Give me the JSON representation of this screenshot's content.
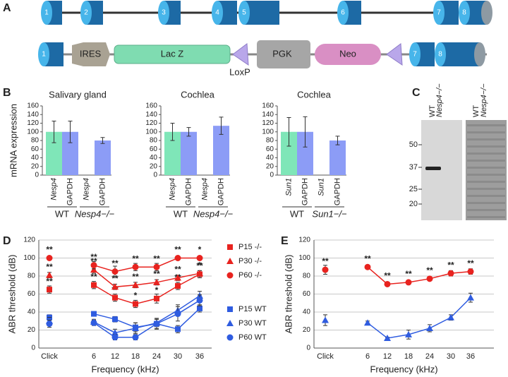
{
  "panel_labels": [
    "A",
    "B",
    "C",
    "D",
    "E"
  ],
  "gene_diagram": {
    "wild_type_exons": [
      "1",
      "2",
      "3",
      "4",
      "5",
      "6",
      "7",
      "8"
    ],
    "targeted_allele": {
      "exon_1": "1",
      "ires": "IRES",
      "lacz": "Lac Z",
      "loxp": "LoxP",
      "pgk": "PGK",
      "neo": "Neo",
      "exon_7": "7",
      "exon_8": "8"
    }
  },
  "blot": {
    "lanes": [
      "WT",
      "Nesp4−/−"
    ],
    "markers": [
      "50",
      "37",
      "25",
      "20"
    ]
  },
  "chart_data": [
    {
      "type": "bar",
      "title": "Salivary gland",
      "y_label": "mRNA expression",
      "categories": [
        "Nesp4",
        "GAPDH",
        "Nesp4",
        "GAPDH"
      ],
      "groups": [
        "WT",
        "Nesp4−/−"
      ],
      "values": [
        100,
        100,
        0,
        80
      ],
      "errors": [
        25,
        25,
        null,
        7
      ],
      "colors": [
        "#7fe6b8",
        "#8c9cf6",
        "#7fe6b8",
        "#8c9cf6"
      ],
      "ylim": [
        0,
        160
      ],
      "yticks": [
        0,
        20,
        40,
        60,
        80,
        100,
        120,
        140,
        160
      ],
      "grid": false
    },
    {
      "type": "bar",
      "title": "Cochlea",
      "categories": [
        "Nesp4",
        "GAPDH",
        "Nesp4",
        "GAPDH"
      ],
      "groups": [
        "WT",
        "Nesp4−/−"
      ],
      "values": [
        100,
        100,
        0,
        114
      ],
      "errors": [
        20,
        10,
        null,
        20
      ],
      "colors": [
        "#7fe6b8",
        "#8c9cf6",
        "#7fe6b8",
        "#8c9cf6"
      ],
      "ylim": [
        0,
        160
      ],
      "yticks": [
        0,
        20,
        40,
        60,
        80,
        100,
        120,
        140,
        160
      ],
      "grid": false
    },
    {
      "type": "bar",
      "title": "Cochlea",
      "categories": [
        "Sun1",
        "GAPDH",
        "Sun1",
        "GAPDH"
      ],
      "groups": [
        "WT",
        "Sun1−/−"
      ],
      "values": [
        100,
        100,
        0,
        80
      ],
      "errors": [
        33,
        35,
        null,
        10
      ],
      "colors": [
        "#7fe6b8",
        "#8c9cf6",
        "#7fe6b8",
        "#8c9cf6"
      ],
      "ylim": [
        0,
        160
      ],
      "yticks": [
        0,
        20,
        40,
        60,
        80,
        100,
        120,
        140,
        160
      ],
      "grid": false
    },
    {
      "type": "line",
      "x_label": "Frequency (kHz)",
      "y_label": "ABR threshold (dB)",
      "categories": [
        "Click",
        "6",
        "12",
        "18",
        "24",
        "30",
        "36"
      ],
      "ylim": [
        0,
        120
      ],
      "yticks": [
        0,
        20,
        40,
        60,
        80,
        100,
        120
      ],
      "grid": true,
      "series": [
        {
          "name": "P15 -/-",
          "color": "#e8231f",
          "marker": "square",
          "values": [
            65,
            70,
            56,
            49,
            55,
            69,
            82
          ],
          "errors": [
            4,
            4,
            4,
            4,
            5,
            4,
            4
          ],
          "significance": [
            "**",
            "**",
            "**",
            "*",
            "*",
            "**",
            "**"
          ]
        },
        {
          "name": "P30 -/-",
          "color": "#e8231f",
          "marker": "triangle",
          "values": [
            81,
            87,
            68,
            70,
            73,
            78,
            83
          ],
          "errors": [
            3,
            4,
            3,
            3,
            3,
            3,
            3
          ],
          "significance": [
            "**",
            "**",
            "**",
            "**",
            "**",
            "**",
            "*"
          ]
        },
        {
          "name": "P60 -/-",
          "color": "#e8231f",
          "marker": "circle",
          "values": [
            100,
            92,
            85,
            90,
            90,
            100,
            100
          ],
          "errors": [
            0,
            4,
            6,
            4,
            4,
            0,
            0
          ],
          "significance": [
            "**",
            "**",
            "**",
            "**",
            "**",
            "**",
            "*"
          ]
        },
        {
          "name": "P15 WT",
          "color": "#2f5ce0",
          "marker": "square",
          "values": [
            34,
            38,
            32,
            23,
            27,
            21,
            44
          ],
          "errors": [
            3,
            2,
            3,
            5,
            6,
            4,
            4
          ]
        },
        {
          "name": "P30 WT",
          "color": "#2f5ce0",
          "marker": "triangle",
          "values": [
            30,
            29,
            17,
            22,
            28,
            42,
            58
          ],
          "errors": [
            4,
            3,
            4,
            6,
            4,
            6,
            5
          ]
        },
        {
          "name": "P60 WT",
          "color": "#2f5ce0",
          "marker": "circle",
          "values": [
            27,
            28,
            12,
            12,
            27,
            38,
            53
          ],
          "errors": [
            4,
            3,
            3,
            3,
            5,
            8,
            6
          ]
        }
      ]
    },
    {
      "type": "line",
      "x_label": "Frequency (kHz)",
      "y_label": "ABR threshold (dB)",
      "categories": [
        "Click",
        "6",
        "12",
        "18",
        "24",
        "30",
        "36"
      ],
      "ylim": [
        0,
        120
      ],
      "yticks": [
        0,
        20,
        40,
        60,
        80,
        100,
        120
      ],
      "grid": true,
      "series": [
        {
          "color": "#e8231f",
          "marker": "circle",
          "values": [
            87,
            90,
            71,
            73,
            77,
            83,
            85
          ],
          "errors": [
            5,
            2,
            2,
            2,
            2,
            3,
            3
          ],
          "significance": [
            "**",
            "**",
            "**",
            "**",
            "**",
            "**",
            "**"
          ]
        },
        {
          "color": "#2f5ce0",
          "marker": "triangle",
          "values": [
            31,
            28,
            11,
            15,
            22,
            34,
            56
          ],
          "errors": [
            6,
            2,
            1,
            5,
            4,
            3,
            5
          ]
        }
      ]
    }
  ]
}
